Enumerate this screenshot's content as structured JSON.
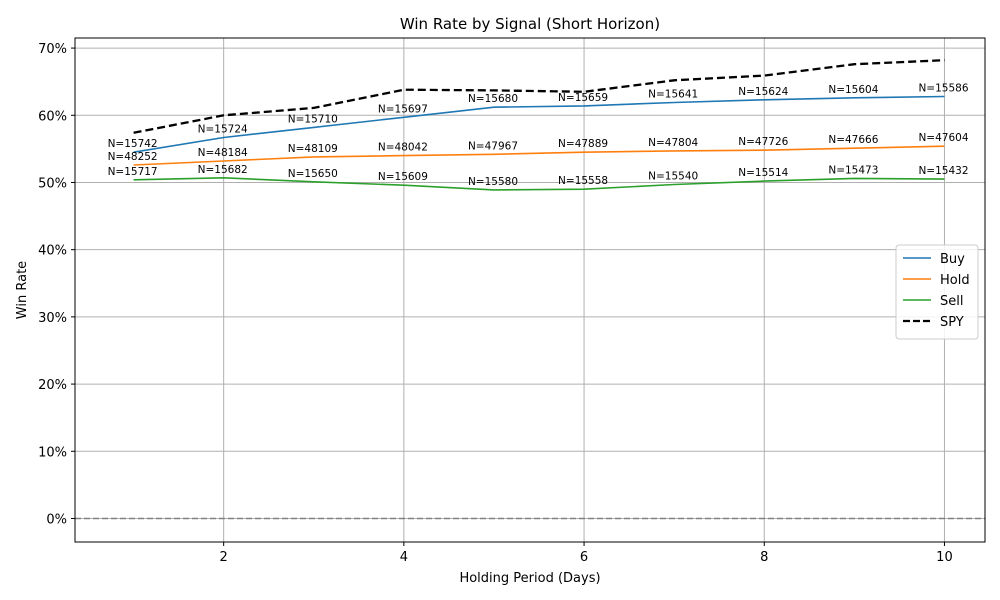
{
  "chart_data": {
    "type": "line",
    "title": "Win Rate by Signal (Short Horizon)",
    "xlabel": "Holding Period (Days)",
    "ylabel": "Win Rate",
    "x": [
      1,
      2,
      3,
      4,
      5,
      6,
      7,
      8,
      9,
      10
    ],
    "xlim": [
      0.35,
      10.45
    ],
    "ylim": [
      -0.035,
      0.715
    ],
    "x_ticks": [
      2,
      4,
      6,
      8,
      10
    ],
    "y_ticks": [
      0,
      0.1,
      0.2,
      0.3,
      0.4,
      0.5,
      0.6,
      0.7
    ],
    "y_tick_labels": [
      "0%",
      "10%",
      "20%",
      "30%",
      "40%",
      "50%",
      "60%",
      "70%"
    ],
    "grid": true,
    "legend_position": "center-right",
    "reference_line": {
      "y": 0,
      "color": "#808080",
      "style": "dashed"
    },
    "series": [
      {
        "name": "Buy",
        "color": "#1f77b4",
        "style": "solid",
        "values": [
          0.545,
          0.567,
          0.582,
          0.597,
          0.612,
          0.614,
          0.619,
          0.623,
          0.626,
          0.628
        ],
        "labels": [
          "N=15742",
          "N=15724",
          "N=15710",
          "N=15697",
          "N=15680",
          "N=15659",
          "N=15641",
          "N=15624",
          "N=15604",
          "N=15586"
        ]
      },
      {
        "name": "Hold",
        "color": "#ff7f0e",
        "style": "solid",
        "values": [
          0.526,
          0.532,
          0.538,
          0.54,
          0.542,
          0.545,
          0.547,
          0.548,
          0.551,
          0.554
        ],
        "labels": [
          "N=48252",
          "N=48184",
          "N=48109",
          "N=48042",
          "N=47967",
          "N=47889",
          "N=47804",
          "N=47726",
          "N=47666",
          "N=47604"
        ]
      },
      {
        "name": "Sell",
        "color": "#2ca02c",
        "style": "solid",
        "values": [
          0.504,
          0.507,
          0.501,
          0.496,
          0.489,
          0.49,
          0.497,
          0.502,
          0.506,
          0.505
        ],
        "labels": [
          "N=15717",
          "N=15682",
          "N=15650",
          "N=15609",
          "N=15580",
          "N=15558",
          "N=15540",
          "N=15514",
          "N=15473",
          "N=15432"
        ]
      },
      {
        "name": "SPY",
        "color": "#000000",
        "style": "dashed",
        "values": [
          0.574,
          0.6,
          0.611,
          0.638,
          0.637,
          0.635,
          0.652,
          0.659,
          0.676,
          0.682
        ],
        "labels": []
      }
    ]
  }
}
